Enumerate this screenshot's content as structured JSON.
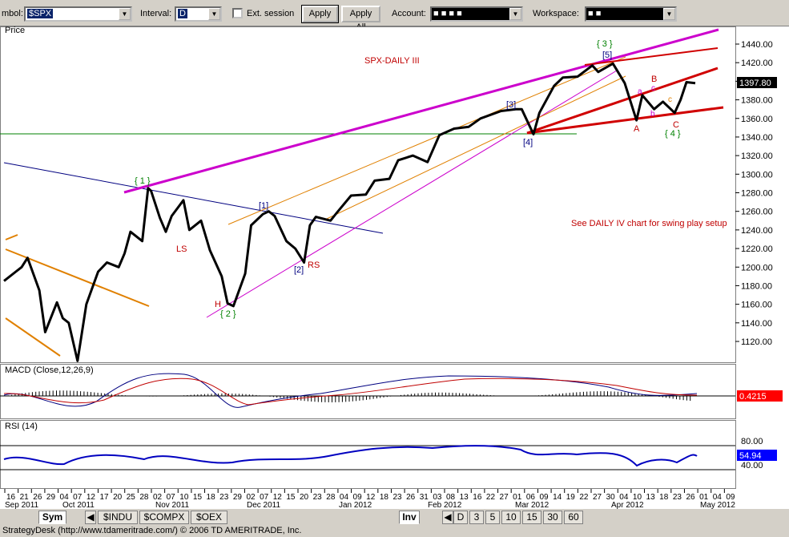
{
  "toolbar": {
    "symbol_label": "mbol:",
    "symbol_value": "$SPX",
    "interval_label": "Interval:",
    "interval_value": "D",
    "ext_session_label": "Ext. session",
    "apply_label": "Apply",
    "apply_all_label": "Apply All",
    "account_label": "Account:",
    "account_value": "■  ■  ■  ■",
    "workspace_label": "Workspace:",
    "workspace_value": "■  ■"
  },
  "price_panel": {
    "label": "Price",
    "chart_title": "SPX-DAILY III",
    "note": "See DAILY IV chart for swing play setup",
    "y_ticks": [
      "1440.00",
      "1420.00",
      "1400.00",
      "1380.00",
      "1360.00",
      "1340.00",
      "1320.00",
      "1300.00",
      "1280.00",
      "1260.00",
      "1240.00",
      "1220.00",
      "1200.00",
      "1180.00",
      "1160.00",
      "1140.00",
      "1120.00"
    ],
    "current_price": "1397.80",
    "annotations": {
      "w1": "{ 1 }",
      "w2": "{ 2 }",
      "w3": "{ 3 }",
      "w4": "{ 4 }",
      "s1": "[1]",
      "s2": "[2]",
      "s3": "[3]",
      "s4": "[4]",
      "s5": "[5]",
      "ls": "LS",
      "head": "H",
      "rs": "RS",
      "a_up": "A",
      "a_low": "a",
      "b_up": "B",
      "b_low": "b",
      "c_up": "C",
      "c_low": "c",
      "c_low2": "c"
    }
  },
  "macd_panel": {
    "label": "MACD (Close,12,26,9)",
    "value": "0.4215"
  },
  "rsi_panel": {
    "label": "RSI (14)",
    "ticks": [
      "80.00",
      "40.00"
    ],
    "value": "54.94"
  },
  "date_axis": {
    "days": [
      "16",
      "21",
      "26",
      "29",
      "04",
      "07",
      "12",
      "17",
      "20",
      "25",
      "28",
      "02",
      "07",
      "10",
      "15",
      "18",
      "23",
      "29",
      "02",
      "07",
      "12",
      "15",
      "20",
      "23",
      "28",
      "04",
      "09",
      "12",
      "18",
      "23",
      "26",
      "31",
      "03",
      "08",
      "13",
      "16",
      "22",
      "27",
      "01",
      "06",
      "09",
      "14",
      "19",
      "22",
      "27",
      "30",
      "04",
      "10",
      "13",
      "18",
      "23",
      "26",
      "01",
      "04",
      "09"
    ],
    "months": [
      "Sep 2011",
      "Oct 2011",
      "Nov 2011",
      "Dec 2011",
      "Jan 2012",
      "Feb 2012",
      "Mar 2012",
      "Apr 2012",
      "May 2012"
    ]
  },
  "tabs": {
    "symbol_tabs": [
      {
        "label": "Sym",
        "active": true
      },
      {
        "label": "$INDU"
      },
      {
        "label": "$COMPX"
      },
      {
        "label": "$OEX"
      }
    ],
    "interval_tabs": [
      {
        "label": "Inv",
        "active": true
      },
      {
        "label": "D"
      },
      {
        "label": "3"
      },
      {
        "label": "5"
      },
      {
        "label": "10"
      },
      {
        "label": "15"
      },
      {
        "label": "30"
      },
      {
        "label": "60"
      }
    ]
  },
  "status_bar": "StrategyDesk (http://www.tdameritrade.com/) © 2006 TD AMERITRADE, Inc.",
  "chart_data": {
    "type": "line",
    "title": "SPX-DAILY III",
    "ylim": [
      1100,
      1460
    ],
    "x": [
      "2011-09-08",
      "2011-09-12",
      "2011-09-14",
      "2011-09-16",
      "2011-09-20",
      "2011-09-22",
      "2011-09-26",
      "2011-09-28",
      "2011-09-30",
      "2011-10-03",
      "2011-10-06",
      "2011-10-10",
      "2011-10-13",
      "2011-10-17",
      "2011-10-19",
      "2011-10-21",
      "2011-10-25",
      "2011-10-27",
      "2011-10-28",
      "2011-10-31",
      "2011-11-02",
      "2011-11-04",
      "2011-11-08",
      "2011-11-10",
      "2011-11-14",
      "2011-11-17",
      "2011-11-21",
      "2011-11-23",
      "2011-11-25",
      "2011-11-29",
      "2011-12-01",
      "2011-12-05",
      "2011-12-07",
      "2011-12-09",
      "2011-12-13",
      "2011-12-16",
      "2011-12-19",
      "2011-12-21",
      "2011-12-23",
      "2011-12-28",
      "2011-12-30",
      "2012-01-04",
      "2012-01-09",
      "2012-01-12",
      "2012-01-17",
      "2012-01-20",
      "2012-01-25",
      "2012-01-30",
      "2012-02-03",
      "2012-02-08",
      "2012-02-13",
      "2012-02-17",
      "2012-02-24",
      "2012-02-29",
      "2012-03-02",
      "2012-03-06",
      "2012-03-08",
      "2012-03-13",
      "2012-03-16",
      "2012-03-21",
      "2012-03-26",
      "2012-03-28",
      "2012-04-02",
      "2012-04-06",
      "2012-04-10",
      "2012-04-12",
      "2012-04-16",
      "2012-04-19",
      "2012-04-23",
      "2012-04-25",
      "2012-04-27",
      "2012-04-30"
    ],
    "values": [
      1185,
      1195,
      1200,
      1210,
      1175,
      1130,
      1162,
      1145,
      1140,
      1099,
      1160,
      1195,
      1205,
      1200,
      1215,
      1238,
      1228,
      1285,
      1282,
      1253,
      1238,
      1255,
      1272,
      1240,
      1250,
      1218,
      1190,
      1161,
      1158,
      1193,
      1245,
      1257,
      1260,
      1255,
      1228,
      1220,
      1205,
      1245,
      1254,
      1250,
      1258,
      1277,
      1278,
      1293,
      1295,
      1315,
      1320,
      1313,
      1342,
      1349,
      1351,
      1360,
      1368,
      1370,
      1370,
      1343,
      1366,
      1395,
      1404,
      1405,
      1417,
      1410,
      1419,
      1398,
      1358,
      1385,
      1370,
      1378,
      1366,
      1380,
      1399,
      1398
    ],
    "series_name": "$SPX",
    "current": 1397.8,
    "indicators": {
      "macd": {
        "params": "Close,12,26,9",
        "last": 0.4215
      },
      "rsi": {
        "period": 14,
        "last": 54.94,
        "levels": [
          80,
          40
        ]
      }
    },
    "grid": false
  }
}
